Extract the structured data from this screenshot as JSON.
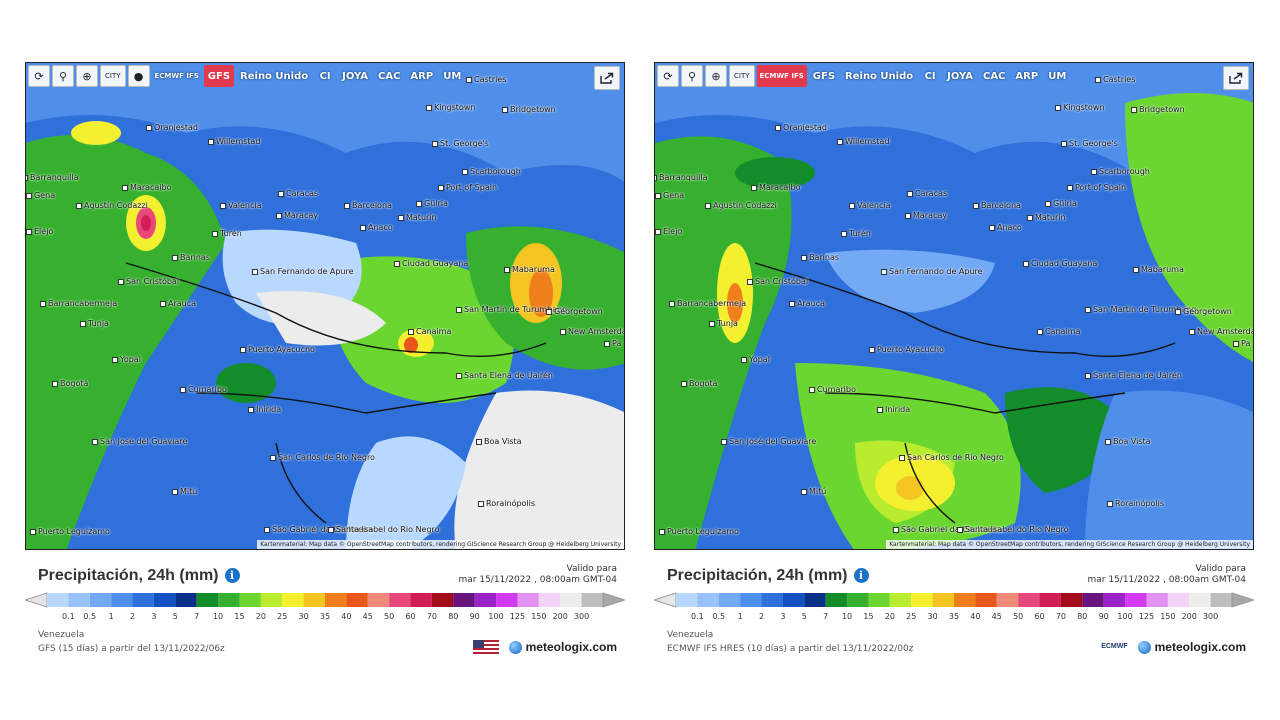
{
  "panels": [
    {
      "toolbar": {
        "buttons": [
          "⟳",
          "⚲",
          "⊕",
          "CITY",
          "●"
        ],
        "models": [
          "ECMWF IFS",
          "GFS",
          "Reino Unido",
          "CI",
          "JOYA",
          "CAC",
          "ARP",
          "UM"
        ],
        "active_model": "GFS"
      },
      "attribution": "Kartenmaterial: Map data © OpenStreetMap contributors, rendering GIScience Research Group @ Heidelberg University",
      "title": "Precipitación, 24h (mm)",
      "valid_label": "Valido para",
      "valid_date": "mar 15/11/2022 , 08:00am GMT-04",
      "region": "Venezuela",
      "source": "GFS (15 días) a partir del 13/11/2022/06z",
      "brand": "meteologix.com",
      "source_badge": "us-flag"
    },
    {
      "toolbar": {
        "buttons": [
          "⟳",
          "⚲",
          "⊕",
          "CITY"
        ],
        "models": [
          "ECMWF IFS",
          "GFS",
          "Reino Unido",
          "CI",
          "JOYA",
          "CAC",
          "ARP",
          "UM"
        ],
        "active_model": "ECMWF IFS"
      },
      "attribution": "Kartenmaterial: Map data © OpenStreetMap contributors, rendering GIScience Research Group @ Heidelberg University",
      "title": "Precipitación, 24h (mm)",
      "valid_label": "Valido para",
      "valid_date": "mar 15/11/2022 , 08:00am GMT-04",
      "region": "Venezuela",
      "source": "ECMWF IFS HRES (10 días) a partir del 13/11/2022/00z",
      "brand": "meteologix.com",
      "source_badge": "ECMWF"
    }
  ],
  "cities": [
    {
      "name": "Castries"
    },
    {
      "name": "Kingstown"
    },
    {
      "name": "Bridgetown"
    },
    {
      "name": "Oranjestad"
    },
    {
      "name": "Willemstad"
    },
    {
      "name": "St. George's"
    },
    {
      "name": "Scarborough"
    },
    {
      "name": "Barranquilla"
    },
    {
      "name": "Port of Spain"
    },
    {
      "name": "Maracaibo"
    },
    {
      "name": "Caracas"
    },
    {
      "name": "Agustín Codazzi"
    },
    {
      "name": "Valencia"
    },
    {
      "name": "Barcelona"
    },
    {
      "name": "Güiria"
    },
    {
      "name": "Maracay"
    },
    {
      "name": "Maturín"
    },
    {
      "name": "Anaco"
    },
    {
      "name": "Turén"
    },
    {
      "name": "Barinas"
    },
    {
      "name": "Ciudad Guayana"
    },
    {
      "name": "San Fernando de Apure"
    },
    {
      "name": "Mabaruma"
    },
    {
      "name": "San Cristóbal"
    },
    {
      "name": "Barrancabermeja"
    },
    {
      "name": "Arauca"
    },
    {
      "name": "San Martín de Turumbang"
    },
    {
      "name": "Georgetown"
    },
    {
      "name": "New Amsterdam"
    },
    {
      "name": "Canaima"
    },
    {
      "name": "Tunja"
    },
    {
      "name": "Yopal"
    },
    {
      "name": "Puerto Ayacucho"
    },
    {
      "name": "Bogotá"
    },
    {
      "name": "Santa Elena de Uairén"
    },
    {
      "name": "Cumaribo"
    },
    {
      "name": "Inírida"
    },
    {
      "name": "Boa Vista"
    },
    {
      "name": "San José del Guaviare"
    },
    {
      "name": "San Carlos de Río Negro"
    },
    {
      "name": "Mitú"
    },
    {
      "name": "Rorainópolis"
    },
    {
      "name": "São Gabriel da Cachoeira"
    },
    {
      "name": "Santa Isabel do Rio Negro"
    },
    {
      "name": "Puerto Leguízamo"
    },
    {
      "name": "Pa"
    },
    {
      "name": "Elejo"
    },
    {
      "name": "Gena"
    }
  ],
  "scale": {
    "values": [
      "0.1",
      "0.5",
      "1",
      "2",
      "3",
      "5",
      "7",
      "10",
      "15",
      "20",
      "25",
      "30",
      "35",
      "40",
      "45",
      "50",
      "60",
      "70",
      "80",
      "90",
      "100",
      "125",
      "150",
      "200",
      "300"
    ],
    "colors": [
      "#b8d8ff",
      "#96c2ff",
      "#74a9f5",
      "#4f8fea",
      "#2f70db",
      "#1350c2",
      "#0a2f86",
      "#138d2a",
      "#36b02e",
      "#6ad62f",
      "#b9ec2e",
      "#f4f02f",
      "#f5c522",
      "#ef7f1a",
      "#e8561c",
      "#f08a78",
      "#e8477a",
      "#d21e54",
      "#a10c1a",
      "#6a1280",
      "#9b24c6",
      "#d33bf0",
      "#e391f2",
      "#f3d4f6",
      "#ececec",
      "#bdbdbd"
    ]
  }
}
